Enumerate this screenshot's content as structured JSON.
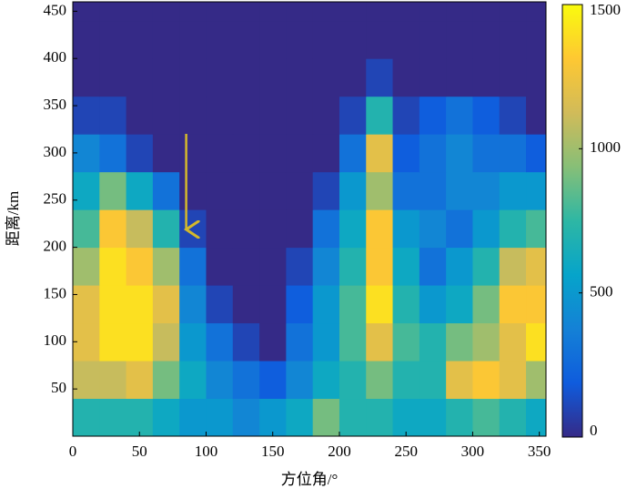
{
  "chart_data": {
    "type": "heatmap",
    "x_label": "方位角/°",
    "y_label": "距离/km",
    "xbins": [
      0,
      20,
      40,
      60,
      80,
      100,
      120,
      140,
      160,
      180,
      200,
      220,
      240,
      260,
      280,
      300,
      320,
      340,
      355
    ],
    "ybins": [
      0,
      40,
      80,
      120,
      160,
      200,
      240,
      280,
      320,
      360,
      400,
      440,
      460
    ],
    "z": [
      [
        700,
        700,
        700,
        600,
        500,
        500,
        400,
        500,
        600,
        900,
        700,
        700,
        600,
        600,
        700,
        800,
        700,
        600
      ],
      [
        1100,
        1100,
        1200,
        900,
        600,
        400,
        300,
        200,
        400,
        600,
        700,
        900,
        700,
        700,
        1200,
        1300,
        1200,
        1000
      ],
      [
        1200,
        1400,
        1400,
        1100,
        500,
        300,
        100,
        0,
        300,
        500,
        800,
        1200,
        800,
        700,
        900,
        1000,
        1200,
        1400
      ],
      [
        1200,
        1400,
        1400,
        1200,
        400,
        100,
        0,
        0,
        200,
        500,
        800,
        1400,
        700,
        500,
        600,
        900,
        1300,
        1300
      ],
      [
        1000,
        1400,
        1300,
        1000,
        300,
        0,
        0,
        0,
        100,
        400,
        700,
        1300,
        600,
        300,
        500,
        700,
        1100,
        1200
      ],
      [
        800,
        1300,
        1100,
        700,
        100,
        0,
        0,
        0,
        0,
        300,
        600,
        1300,
        500,
        400,
        300,
        500,
        700,
        800
      ],
      [
        600,
        900,
        600,
        300,
        0,
        0,
        0,
        0,
        0,
        100,
        500,
        1000,
        300,
        300,
        400,
        400,
        500,
        500
      ],
      [
        400,
        300,
        100,
        0,
        0,
        0,
        0,
        0,
        0,
        0,
        300,
        1200,
        200,
        300,
        400,
        300,
        300,
        200
      ],
      [
        100,
        100,
        0,
        0,
        0,
        0,
        0,
        0,
        0,
        0,
        100,
        700,
        100,
        200,
        300,
        200,
        100,
        0
      ],
      [
        0,
        0,
        0,
        0,
        0,
        0,
        0,
        0,
        0,
        0,
        0,
        100,
        0,
        0,
        0,
        0,
        0,
        0
      ],
      [
        0,
        0,
        0,
        0,
        0,
        0,
        0,
        0,
        0,
        0,
        0,
        0,
        0,
        0,
        0,
        0,
        0,
        0
      ],
      [
        0,
        0,
        0,
        0,
        0,
        0,
        0,
        0,
        0,
        0,
        0,
        0,
        0,
        0,
        0,
        0,
        0,
        0
      ]
    ],
    "xlim": [
      0,
      355
    ],
    "ylim": [
      0,
      460
    ],
    "xticks": [
      0,
      50,
      100,
      150,
      200,
      250,
      300,
      350
    ],
    "yticks": [
      50,
      100,
      150,
      200,
      250,
      300,
      350,
      400,
      450
    ],
    "clim": [
      0,
      1500
    ],
    "cticks": [
      0,
      500,
      1000,
      1500
    ],
    "colorscale": [
      "#352a87",
      "#0f5cdd",
      "#1481d6",
      "#06a4ca",
      "#2eb7a4",
      "#87bf77",
      "#d1bb59",
      "#fec832",
      "#f9fb0e"
    ]
  }
}
